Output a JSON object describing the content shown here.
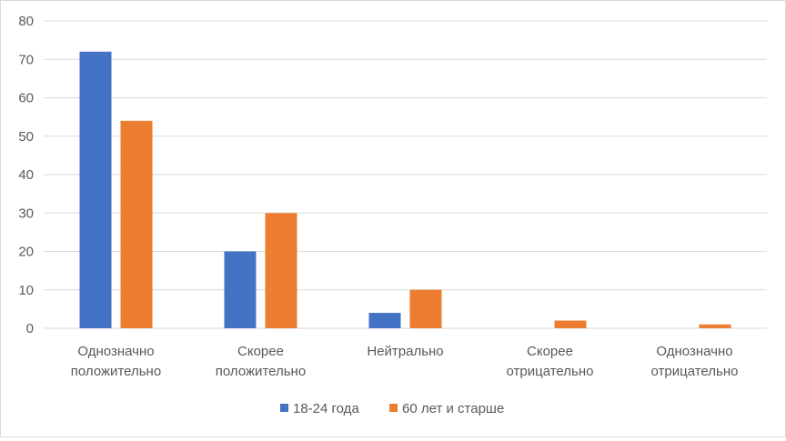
{
  "chart_data": {
    "type": "bar",
    "title": "",
    "categories": [
      [
        "Однозначно",
        "положительно"
      ],
      [
        "Скорее",
        "положительно"
      ],
      [
        "Нейтрально"
      ],
      [
        "Скорее",
        "отрицательно"
      ],
      [
        "Однозначно",
        "отрицательно"
      ]
    ],
    "series": [
      {
        "name": "18-24 года",
        "color": "#4472C4",
        "values": [
          72,
          20,
          4,
          0,
          0
        ]
      },
      {
        "name": "60 лет и старше",
        "color": "#ED7D31",
        "values": [
          54,
          30,
          10,
          2,
          1
        ]
      }
    ],
    "ylim": [
      0,
      80
    ],
    "yticks": [
      0,
      10,
      20,
      30,
      40,
      50,
      60,
      70,
      80
    ],
    "grid": true,
    "legend": "bottom",
    "xlabel": "",
    "ylabel": ""
  }
}
